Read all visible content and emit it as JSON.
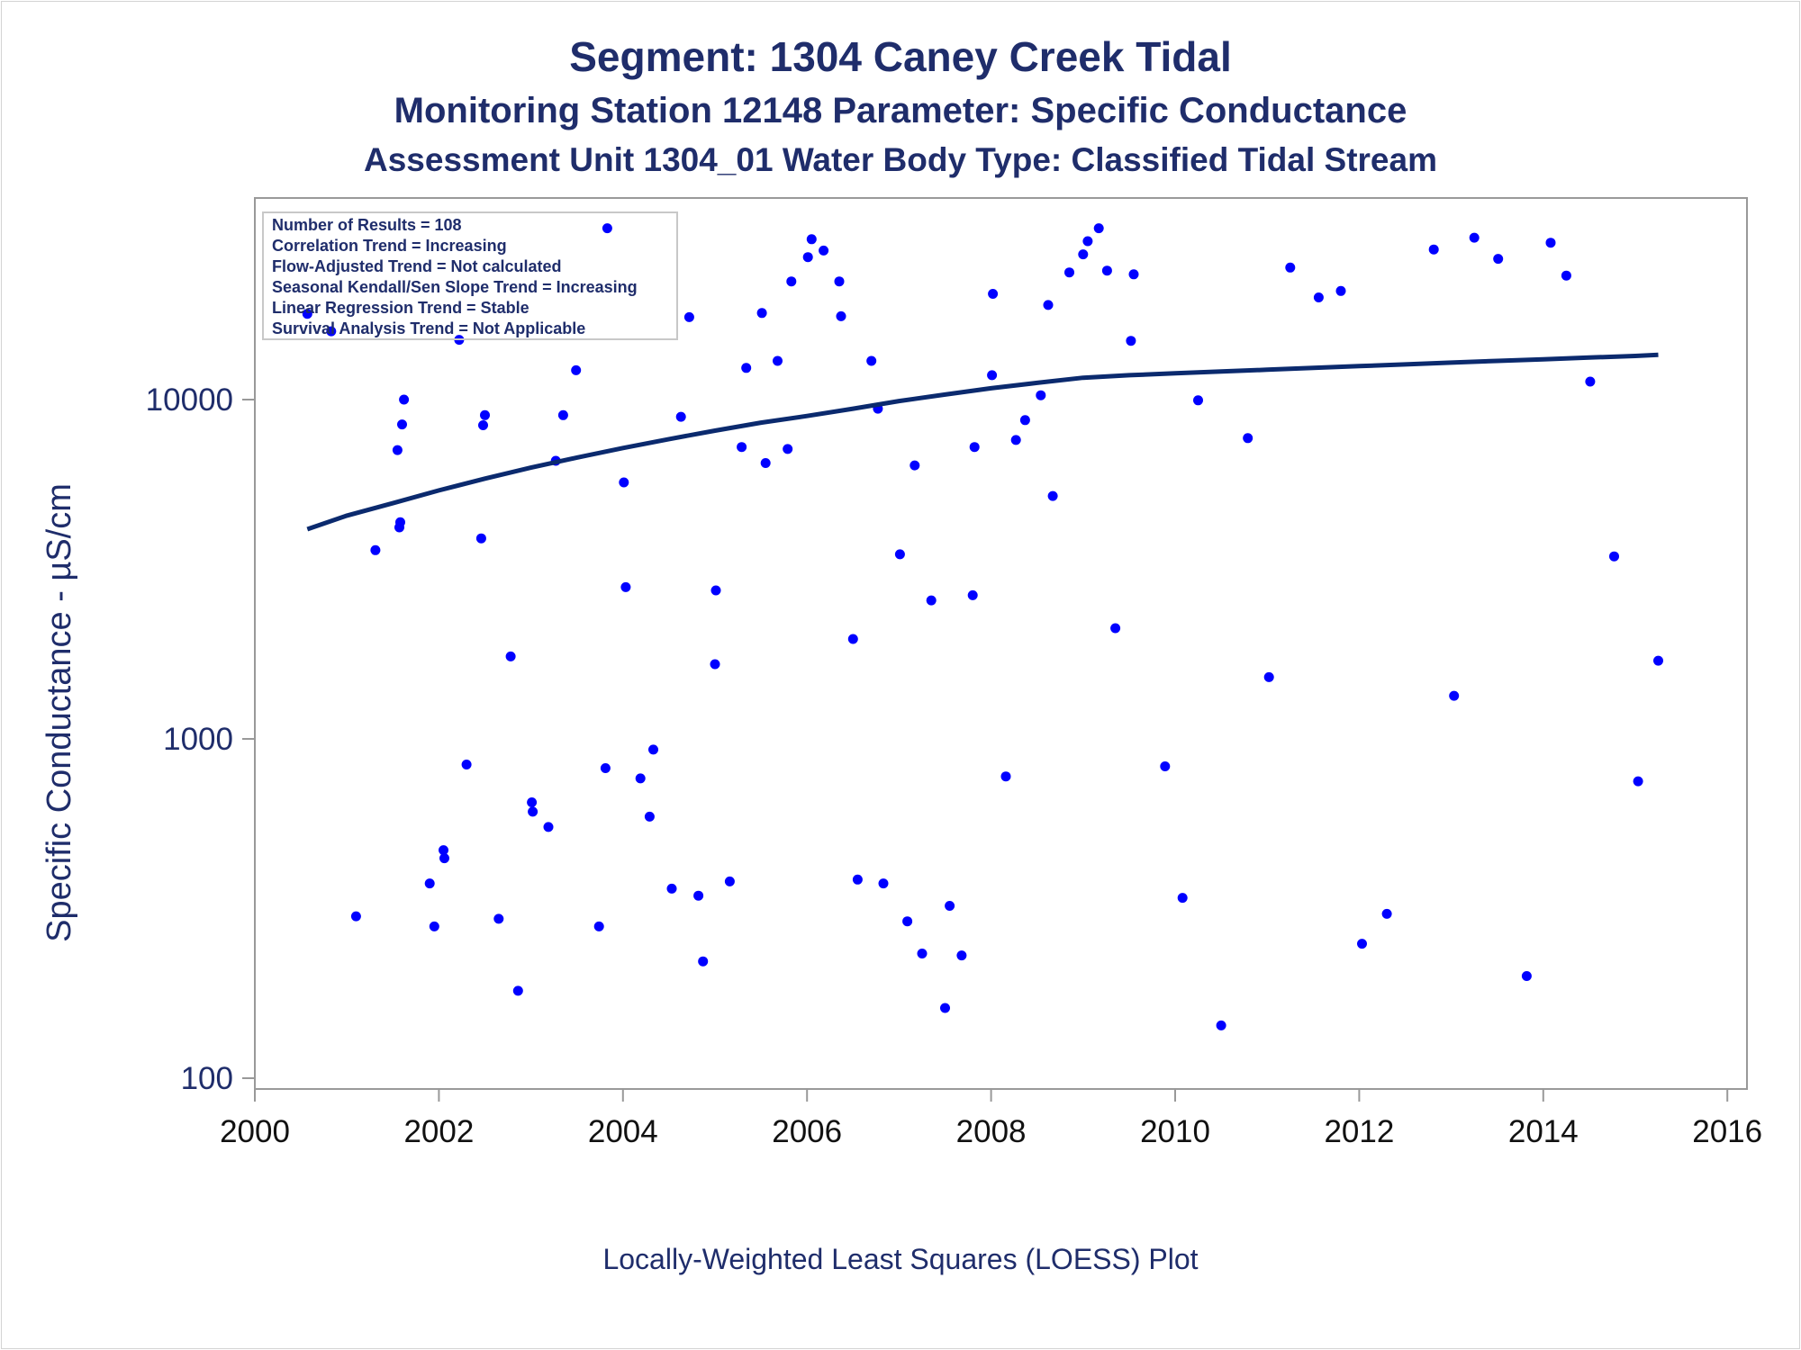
{
  "chart_data": {
    "type": "scatter",
    "title": "Segment: 1304  Caney Creek Tidal",
    "subtitle": "Monitoring Station 12148 Parameter: Specific Conductance",
    "subtitle2": "Assessment Unit 1304_01   Water Body Type: Classified Tidal Stream",
    "footnote": "Locally-Weighted Least Squares (LOESS) Plot",
    "xlabel": "",
    "ylabel": "Specific Conductance -  µS/cm",
    "y_scale": "log",
    "xlim": [
      2000,
      2016
    ],
    "ylim": [
      100,
      35000
    ],
    "x_ticks": [
      2000,
      2002,
      2004,
      2006,
      2008,
      2010,
      2012,
      2014,
      2016
    ],
    "y_ticks": [
      100,
      1000,
      10000
    ],
    "grid": false,
    "legend_position": "top-left",
    "stats": [
      "Number of Results = 108",
      "Correlation Trend = Increasing",
      "Flow-Adjusted Trend = Not calculated",
      "Seasonal Kendall/Sen Slope Trend = Increasing",
      "Linear Regression Trend = Stable",
      "Survival Analysis Trend = Not Applicable"
    ],
    "colors": {
      "points": "#0000ff",
      "loess": "#0b2a6e",
      "text": "#1f2d6b",
      "axis": "#999999"
    },
    "points": [
      [
        2000.57,
        17900
      ],
      [
        2000.83,
        15900
      ],
      [
        2001.1,
        300
      ],
      [
        2001.31,
        3600
      ],
      [
        2001.55,
        7100
      ],
      [
        2001.57,
        4200
      ],
      [
        2001.58,
        4350
      ],
      [
        2001.6,
        8450
      ],
      [
        2001.62,
        10000
      ],
      [
        2001.9,
        375
      ],
      [
        2001.95,
        280
      ],
      [
        2002.05,
        470
      ],
      [
        2002.06,
        445
      ],
      [
        2002.22,
        15000
      ],
      [
        2002.3,
        840
      ],
      [
        2002.46,
        3900
      ],
      [
        2002.48,
        8400
      ],
      [
        2002.5,
        9000
      ],
      [
        2002.65,
        295
      ],
      [
        2002.78,
        1750
      ],
      [
        2002.86,
        181
      ],
      [
        2003.01,
        650
      ],
      [
        2003.02,
        610
      ],
      [
        2003.19,
        550
      ],
      [
        2003.27,
        6600
      ],
      [
        2003.35,
        9000
      ],
      [
        2003.49,
        12200
      ],
      [
        2003.74,
        280
      ],
      [
        2003.81,
        820
      ],
      [
        2003.83,
        32000
      ],
      [
        2004.01,
        5700
      ],
      [
        2004.03,
        2800
      ],
      [
        2004.19,
        765
      ],
      [
        2004.29,
        590
      ],
      [
        2004.33,
        930
      ],
      [
        2004.53,
        362
      ],
      [
        2004.63,
        8900
      ],
      [
        2004.72,
        17500
      ],
      [
        2004.82,
        345
      ],
      [
        2004.87,
        221
      ],
      [
        2005.0,
        1660
      ],
      [
        2005.01,
        2740
      ],
      [
        2005.16,
        380
      ],
      [
        2005.29,
        7250
      ],
      [
        2005.34,
        12400
      ],
      [
        2005.51,
        18000
      ],
      [
        2005.55,
        6500
      ],
      [
        2005.68,
        13000
      ],
      [
        2005.79,
        7150
      ],
      [
        2005.83,
        22300
      ],
      [
        2006.01,
        26300
      ],
      [
        2006.05,
        29700
      ],
      [
        2006.18,
        27500
      ],
      [
        2006.35,
        22300
      ],
      [
        2006.37,
        17600
      ],
      [
        2006.5,
        1970
      ],
      [
        2006.55,
        385
      ],
      [
        2006.7,
        13000
      ],
      [
        2006.77,
        9400
      ],
      [
        2006.83,
        375
      ],
      [
        2007.01,
        3500
      ],
      [
        2007.09,
        290
      ],
      [
        2007.17,
        6400
      ],
      [
        2007.25,
        233
      ],
      [
        2007.35,
        2560
      ],
      [
        2007.5,
        161
      ],
      [
        2007.55,
        322
      ],
      [
        2007.68,
        230
      ],
      [
        2007.8,
        2650
      ],
      [
        2007.82,
        7250
      ],
      [
        2008.01,
        11800
      ],
      [
        2008.02,
        20500
      ],
      [
        2008.16,
        775
      ],
      [
        2008.27,
        7600
      ],
      [
        2008.37,
        8700
      ],
      [
        2008.54,
        10300
      ],
      [
        2008.62,
        19000
      ],
      [
        2008.67,
        5200
      ],
      [
        2008.85,
        23700
      ],
      [
        2009.0,
        26800
      ],
      [
        2009.05,
        29300
      ],
      [
        2009.17,
        32000
      ],
      [
        2009.26,
        24000
      ],
      [
        2009.35,
        2120
      ],
      [
        2009.52,
        14900
      ],
      [
        2009.55,
        23400
      ],
      [
        2009.89,
        830
      ],
      [
        2010.08,
        340
      ],
      [
        2010.25,
        9950
      ],
      [
        2010.5,
        143
      ],
      [
        2010.79,
        7700
      ],
      [
        2011.02,
        1520
      ],
      [
        2011.25,
        24500
      ],
      [
        2011.56,
        20000
      ],
      [
        2011.8,
        20900
      ],
      [
        2012.03,
        249
      ],
      [
        2012.3,
        305
      ],
      [
        2012.81,
        27700
      ],
      [
        2013.03,
        1340
      ],
      [
        2013.25,
        30000
      ],
      [
        2013.51,
        26000
      ],
      [
        2013.82,
        200
      ],
      [
        2014.08,
        29000
      ],
      [
        2014.25,
        23200
      ],
      [
        2014.51,
        11300
      ],
      [
        2014.77,
        3450
      ],
      [
        2015.03,
        750
      ],
      [
        2015.25,
        1700
      ]
    ],
    "loess": [
      [
        2000.57,
        4150
      ],
      [
        2001.0,
        4550
      ],
      [
        2001.5,
        4950
      ],
      [
        2002.0,
        5400
      ],
      [
        2002.5,
        5850
      ],
      [
        2003.0,
        6300
      ],
      [
        2003.5,
        6750
      ],
      [
        2004.0,
        7200
      ],
      [
        2004.5,
        7650
      ],
      [
        2005.0,
        8100
      ],
      [
        2005.5,
        8550
      ],
      [
        2006.0,
        8950
      ],
      [
        2006.5,
        9400
      ],
      [
        2007.0,
        9900
      ],
      [
        2007.5,
        10350
      ],
      [
        2008.0,
        10800
      ],
      [
        2008.5,
        11200
      ],
      [
        2009.0,
        11600
      ],
      [
        2009.5,
        11800
      ],
      [
        2010.0,
        11950
      ],
      [
        2010.5,
        12100
      ],
      [
        2011.0,
        12250
      ],
      [
        2011.5,
        12400
      ],
      [
        2012.0,
        12550
      ],
      [
        2012.5,
        12700
      ],
      [
        2013.0,
        12850
      ],
      [
        2013.5,
        13000
      ],
      [
        2014.0,
        13150
      ],
      [
        2014.5,
        13300
      ],
      [
        2015.0,
        13450
      ],
      [
        2015.25,
        13550
      ]
    ]
  }
}
